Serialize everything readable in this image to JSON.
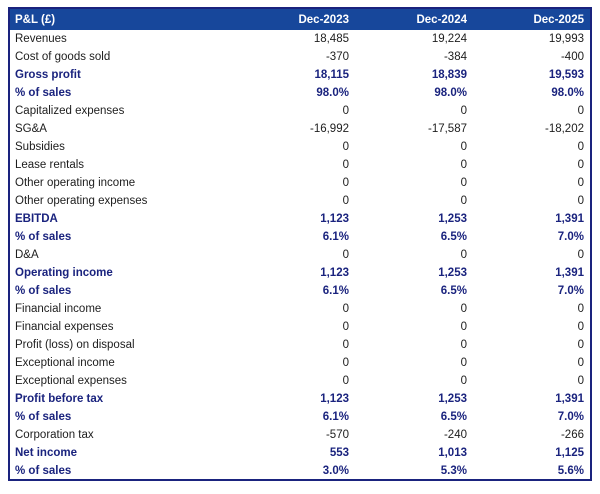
{
  "page": {
    "background": "#FFFFFF"
  },
  "colors": {
    "header_bg": "#17479B",
    "header_text": "#FFFFFF",
    "bold_text": "#1A237E",
    "body_text": "#1D1D1D",
    "border": "#1A237E"
  },
  "chart_data": {
    "type": "table",
    "title": "P&L (£)",
    "currency": "£",
    "columns": [
      "Dec-2023",
      "Dec-2024",
      "Dec-2025"
    ],
    "rows": [
      {
        "label": "Revenues",
        "values": [
          "18,485",
          "19,224",
          "19,993"
        ],
        "bold": false
      },
      {
        "label": "Cost of goods sold",
        "values": [
          "-370",
          "-384",
          "-400"
        ],
        "bold": false
      },
      {
        "label": "Gross profit",
        "values": [
          "18,115",
          "18,839",
          "19,593"
        ],
        "bold": true
      },
      {
        "label": "% of sales",
        "values": [
          "98.0%",
          "98.0%",
          "98.0%"
        ],
        "bold": true
      },
      {
        "label": "Capitalized expenses",
        "values": [
          "0",
          "0",
          "0"
        ],
        "bold": false
      },
      {
        "label": "SG&A",
        "values": [
          "-16,992",
          "-17,587",
          "-18,202"
        ],
        "bold": false
      },
      {
        "label": "Subsidies",
        "values": [
          "0",
          "0",
          "0"
        ],
        "bold": false
      },
      {
        "label": "Lease rentals",
        "values": [
          "0",
          "0",
          "0"
        ],
        "bold": false
      },
      {
        "label": "Other operating income",
        "values": [
          "0",
          "0",
          "0"
        ],
        "bold": false
      },
      {
        "label": "Other operating expenses",
        "values": [
          "0",
          "0",
          "0"
        ],
        "bold": false
      },
      {
        "label": "EBITDA",
        "values": [
          "1,123",
          "1,253",
          "1,391"
        ],
        "bold": true
      },
      {
        "label": "% of sales",
        "values": [
          "6.1%",
          "6.5%",
          "7.0%"
        ],
        "bold": true
      },
      {
        "label": "D&A",
        "values": [
          "0",
          "0",
          "0"
        ],
        "bold": false
      },
      {
        "label": "Operating income",
        "values": [
          "1,123",
          "1,253",
          "1,391"
        ],
        "bold": true
      },
      {
        "label": "% of sales",
        "values": [
          "6.1%",
          "6.5%",
          "7.0%"
        ],
        "bold": true
      },
      {
        "label": "Financial income",
        "values": [
          "0",
          "0",
          "0"
        ],
        "bold": false
      },
      {
        "label": "Financial expenses",
        "values": [
          "0",
          "0",
          "0"
        ],
        "bold": false
      },
      {
        "label": "Profit (loss) on disposal",
        "values": [
          "0",
          "0",
          "0"
        ],
        "bold": false
      },
      {
        "label": "Exceptional income",
        "values": [
          "0",
          "0",
          "0"
        ],
        "bold": false
      },
      {
        "label": "Exceptional expenses",
        "values": [
          "0",
          "0",
          "0"
        ],
        "bold": false
      },
      {
        "label": "Profit before tax",
        "values": [
          "1,123",
          "1,253",
          "1,391"
        ],
        "bold": true
      },
      {
        "label": "% of sales",
        "values": [
          "6.1%",
          "6.5%",
          "7.0%"
        ],
        "bold": true
      },
      {
        "label": "Corporation tax",
        "values": [
          "-570",
          "-240",
          "-266"
        ],
        "bold": false
      },
      {
        "label": "Net income",
        "values": [
          "553",
          "1,013",
          "1,125"
        ],
        "bold": true
      },
      {
        "label": "% of sales",
        "values": [
          "3.0%",
          "5.3%",
          "5.6%"
        ],
        "bold": true
      }
    ]
  }
}
